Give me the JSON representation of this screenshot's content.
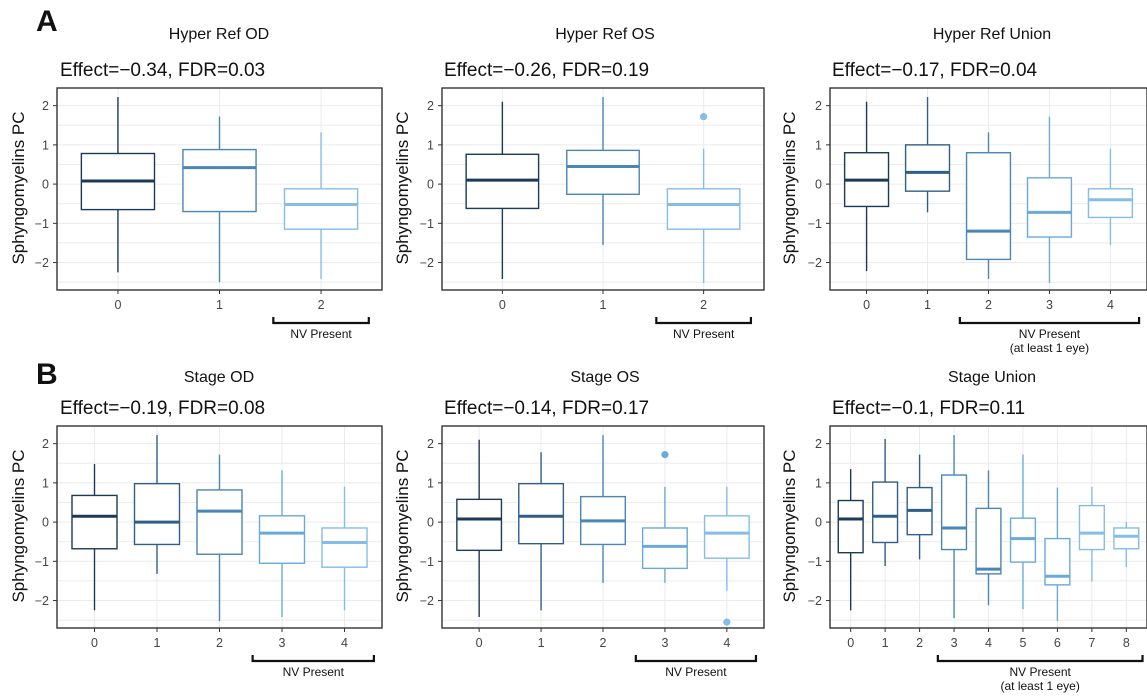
{
  "palette": [
    "#1b3a57",
    "#2f5f86",
    "#4a86b6",
    "#6aaad8",
    "#84bde6"
  ],
  "rows": [
    {
      "letter": "A"
    },
    {
      "letter": "B"
    }
  ],
  "chart_data": [
    {
      "type": "box",
      "title": "Hyper Ref OD",
      "subtitle": "Effect=−0.34, FDR=0.03",
      "ylabel": "Sphyngomyelins PC",
      "ylim": [
        -2.7,
        2.45
      ],
      "yticks": [
        -2,
        -1,
        0,
        1,
        2
      ],
      "categories": [
        "0",
        "1",
        "2"
      ],
      "boxes": [
        {
          "min": -2.25,
          "q1": -0.65,
          "median": 0.08,
          "q3": 0.78,
          "max": 2.22,
          "outliers": []
        },
        {
          "min": -2.5,
          "q1": -0.7,
          "median": 0.42,
          "q3": 0.88,
          "max": 1.72,
          "outliers": []
        },
        {
          "min": -2.42,
          "q1": -1.15,
          "median": -0.52,
          "q3": -0.12,
          "max": 1.32,
          "outliers": []
        }
      ],
      "bracket": {
        "label": "NV Present",
        "sublabel": "",
        "from": 2,
        "to": 2
      }
    },
    {
      "type": "box",
      "title": "Hyper Ref OS",
      "subtitle": "Effect=−0.26, FDR=0.19",
      "ylabel": "Sphyngomyelins PC",
      "ylim": [
        -2.7,
        2.45
      ],
      "yticks": [
        -2,
        -1,
        0,
        1,
        2
      ],
      "categories": [
        "0",
        "1",
        "2"
      ],
      "boxes": [
        {
          "min": -2.42,
          "q1": -0.62,
          "median": 0.1,
          "q3": 0.76,
          "max": 2.1,
          "outliers": []
        },
        {
          "min": -1.55,
          "q1": -0.26,
          "median": 0.45,
          "q3": 0.86,
          "max": 2.22,
          "outliers": []
        },
        {
          "min": -2.52,
          "q1": -1.15,
          "median": -0.52,
          "q3": -0.12,
          "max": 0.9,
          "outliers": [
            1.72
          ]
        }
      ],
      "bracket": {
        "label": "NV Present",
        "sublabel": "",
        "from": 2,
        "to": 2
      }
    },
    {
      "type": "box",
      "title": "Hyper Ref Union",
      "subtitle": "Effect=−0.17, FDR=0.04",
      "ylabel": "Sphyngomyelins PC",
      "ylim": [
        -2.7,
        2.45
      ],
      "yticks": [
        -2,
        -1,
        0,
        1,
        2
      ],
      "categories": [
        "0",
        "1",
        "2",
        "3",
        "4"
      ],
      "boxes": [
        {
          "min": -2.22,
          "q1": -0.57,
          "median": 0.1,
          "q3": 0.8,
          "max": 2.1,
          "outliers": []
        },
        {
          "min": -0.72,
          "q1": -0.18,
          "median": 0.3,
          "q3": 1.0,
          "max": 2.22,
          "outliers": []
        },
        {
          "min": -2.42,
          "q1": -1.92,
          "median": -1.2,
          "q3": 0.8,
          "max": 1.32,
          "outliers": []
        },
        {
          "min": -2.52,
          "q1": -1.35,
          "median": -0.72,
          "q3": 0.16,
          "max": 1.72,
          "outliers": []
        },
        {
          "min": -1.55,
          "q1": -0.85,
          "median": -0.4,
          "q3": -0.12,
          "max": 0.9,
          "outliers": []
        }
      ],
      "bracket": {
        "label": "NV Present",
        "sublabel": "(at least 1 eye)",
        "from": 2,
        "to": 4
      }
    },
    {
      "type": "box",
      "title": "Stage OD",
      "subtitle": "Effect=−0.19, FDR=0.08",
      "ylabel": "Sphyngomyelins PC",
      "ylim": [
        -2.7,
        2.45
      ],
      "yticks": [
        -2,
        -1,
        0,
        1,
        2
      ],
      "categories": [
        "0",
        "1",
        "2",
        "3",
        "4"
      ],
      "boxes": [
        {
          "min": -2.25,
          "q1": -0.68,
          "median": 0.15,
          "q3": 0.68,
          "max": 1.48,
          "outliers": []
        },
        {
          "min": -1.32,
          "q1": -0.57,
          "median": 0.0,
          "q3": 0.98,
          "max": 2.22,
          "outliers": []
        },
        {
          "min": -2.52,
          "q1": -0.82,
          "median": 0.28,
          "q3": 0.82,
          "max": 1.72,
          "outliers": []
        },
        {
          "min": -2.42,
          "q1": -1.05,
          "median": -0.28,
          "q3": 0.16,
          "max": 1.32,
          "outliers": []
        },
        {
          "min": -2.25,
          "q1": -1.15,
          "median": -0.52,
          "q3": -0.15,
          "max": 0.9,
          "outliers": []
        }
      ],
      "bracket": {
        "label": "NV Present",
        "sublabel": "",
        "from": 3,
        "to": 4
      }
    },
    {
      "type": "box",
      "title": "Stage OS",
      "subtitle": "Effect=−0.14, FDR=0.17",
      "ylabel": "Sphyngomyelins PC",
      "ylim": [
        -2.7,
        2.45
      ],
      "yticks": [
        -2,
        -1,
        0,
        1,
        2
      ],
      "categories": [
        "0",
        "1",
        "2",
        "3",
        "4"
      ],
      "boxes": [
        {
          "min": -2.42,
          "q1": -0.72,
          "median": 0.08,
          "q3": 0.58,
          "max": 2.1,
          "outliers": []
        },
        {
          "min": -2.25,
          "q1": -0.55,
          "median": 0.15,
          "q3": 0.98,
          "max": 1.78,
          "outliers": []
        },
        {
          "min": -1.55,
          "q1": -0.57,
          "median": 0.03,
          "q3": 0.65,
          "max": 2.22,
          "outliers": []
        },
        {
          "min": -1.55,
          "q1": -1.18,
          "median": -0.62,
          "q3": -0.15,
          "max": 0.9,
          "outliers": [
            1.72
          ]
        },
        {
          "min": -1.75,
          "q1": -0.92,
          "median": -0.28,
          "q3": 0.16,
          "max": 0.9,
          "outliers": [
            -2.55
          ]
        }
      ],
      "bracket": {
        "label": "NV Present",
        "sublabel": "",
        "from": 3,
        "to": 4
      }
    },
    {
      "type": "box",
      "title": "Stage Union",
      "subtitle": "Effect=−0.1, FDR=0.11",
      "ylabel": "Sphyngomyelins PC",
      "ylim": [
        -2.7,
        2.45
      ],
      "yticks": [
        -2,
        -1,
        0,
        1,
        2
      ],
      "categories": [
        "0",
        "1",
        "2",
        "3",
        "4",
        "5",
        "6",
        "7",
        "8"
      ],
      "boxes": [
        {
          "min": -2.25,
          "q1": -0.78,
          "median": 0.08,
          "q3": 0.55,
          "max": 1.35,
          "outliers": []
        },
        {
          "min": -1.12,
          "q1": -0.52,
          "median": 0.15,
          "q3": 1.02,
          "max": 2.12,
          "outliers": []
        },
        {
          "min": -0.95,
          "q1": -0.32,
          "median": 0.3,
          "q3": 0.88,
          "max": 1.72,
          "outliers": []
        },
        {
          "min": -2.45,
          "q1": -0.7,
          "median": -0.15,
          "q3": 1.2,
          "max": 2.22,
          "outliers": []
        },
        {
          "min": -2.12,
          "q1": -1.32,
          "median": -1.2,
          "q3": 0.35,
          "max": 1.32,
          "outliers": []
        },
        {
          "min": -2.22,
          "q1": -1.02,
          "median": -0.42,
          "q3": 0.1,
          "max": 1.72,
          "outliers": []
        },
        {
          "min": -2.52,
          "q1": -1.6,
          "median": -1.38,
          "q3": -0.42,
          "max": 0.88,
          "outliers": []
        },
        {
          "min": -1.52,
          "q1": -0.7,
          "median": -0.28,
          "q3": 0.42,
          "max": 0.9,
          "outliers": []
        },
        {
          "min": -1.15,
          "q1": -0.68,
          "median": -0.36,
          "q3": -0.15,
          "max": 0.0,
          "outliers": []
        }
      ],
      "bracket": {
        "label": "NV Present",
        "sublabel": "(at least 1 eye)",
        "from": 3,
        "to": 8
      }
    }
  ]
}
